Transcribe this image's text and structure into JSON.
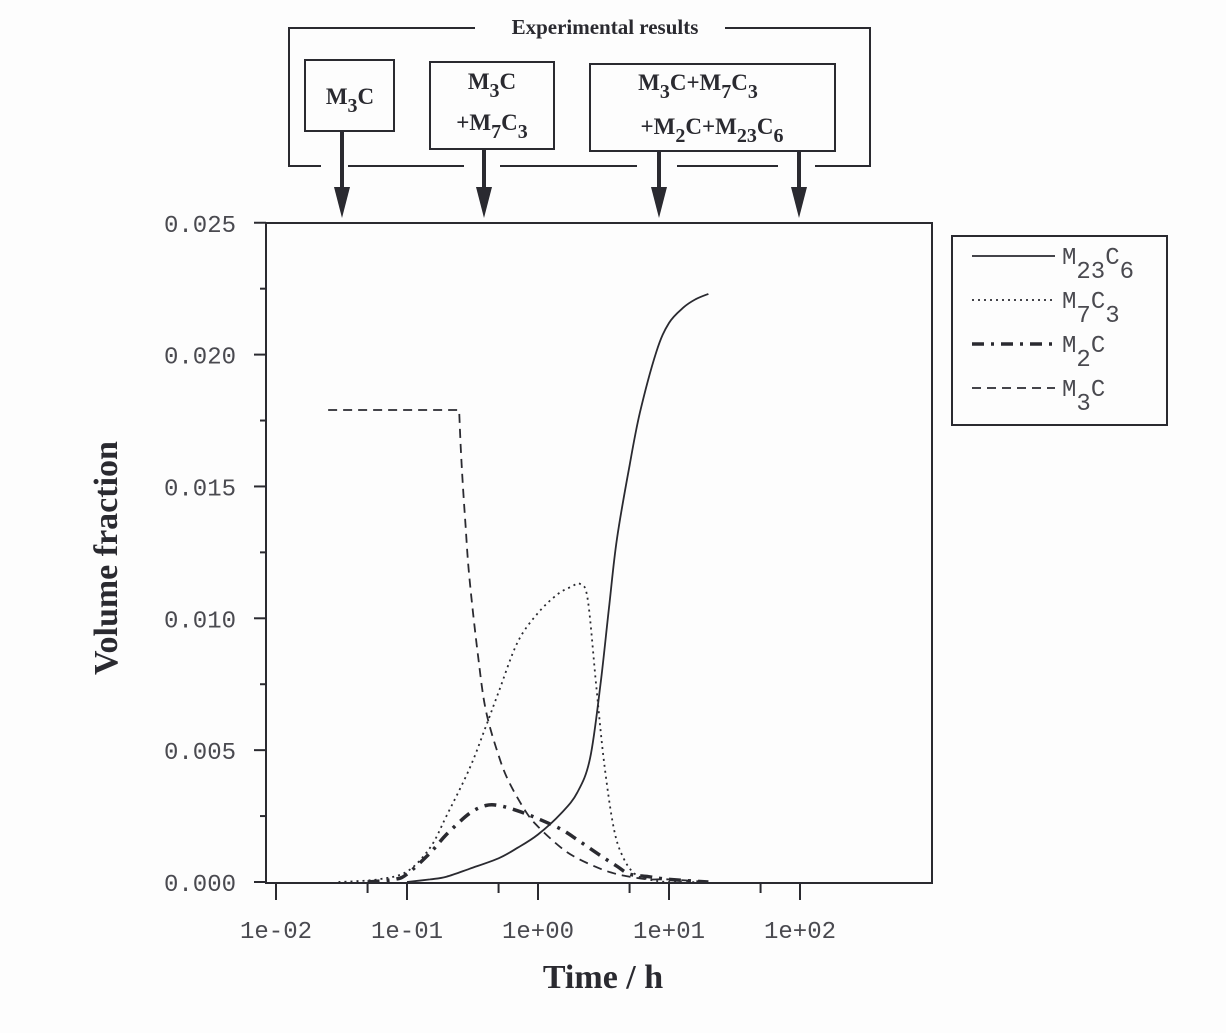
{
  "annotation": {
    "title": "Experimental results",
    "boxes": [
      {
        "lines": [
          [
            [
              "M",
              ""
            ],
            [
              "3",
              "sub"
            ],
            [
              "C",
              ""
            ]
          ]
        ]
      },
      {
        "lines": [
          [
            [
              "M",
              ""
            ],
            [
              "3",
              "sub"
            ],
            [
              "C",
              ""
            ]
          ],
          [
            [
              "+M",
              ""
            ],
            [
              "7",
              "sub"
            ],
            [
              "C",
              ""
            ],
            [
              "3",
              "sub"
            ]
          ]
        ]
      },
      {
        "lines": [
          [
            [
              "M",
              ""
            ],
            [
              "3",
              "sub"
            ],
            [
              "C+M",
              ""
            ],
            [
              "7",
              "sub"
            ],
            [
              "C",
              ""
            ],
            [
              "3",
              "sub"
            ]
          ],
          [
            [
              "+M",
              ""
            ],
            [
              "2",
              "sub"
            ],
            [
              "C+M",
              ""
            ],
            [
              "23",
              "sub"
            ],
            [
              "C",
              ""
            ],
            [
              "6",
              "sub"
            ]
          ]
        ]
      }
    ],
    "arrow_times_h": [
      0.03,
      0.25,
      7,
      100
    ]
  },
  "chart_data": {
    "type": "line",
    "title": "",
    "xlabel": "Time / h",
    "ylabel": "Volume fraction",
    "xscale": "log",
    "xlim": [
      0.0085,
      1000
    ],
    "ylim": [
      0,
      0.025
    ],
    "grid": false,
    "legend_position": "right-outside",
    "xticks": [
      "1e-02",
      "1e-01",
      "1e+00",
      "1e+01",
      "1e+02"
    ],
    "yticks": [
      "0.000",
      "0.005",
      "0.010",
      "0.015",
      "0.020",
      "0.025"
    ],
    "series": [
      {
        "name": "M23C6",
        "label_parts": [
          [
            "M",
            ""
          ],
          [
            "23",
            "sub"
          ],
          [
            "C",
            ""
          ],
          [
            "6",
            "sub"
          ]
        ],
        "style": "solid",
        "x": [
          0.1,
          0.15,
          0.2,
          0.3,
          0.5,
          0.7,
          1.0,
          1.5,
          2.0,
          2.5,
          3.0,
          3.5,
          4.0,
          5.0,
          6.0,
          8.0,
          10,
          13,
          16,
          20
        ],
        "y": [
          0.0,
          0.0001,
          0.0002,
          0.0005,
          0.0009,
          0.0013,
          0.0018,
          0.0026,
          0.0034,
          0.0047,
          0.0075,
          0.0105,
          0.013,
          0.0158,
          0.0178,
          0.0201,
          0.0212,
          0.0218,
          0.0221,
          0.0223
        ]
      },
      {
        "name": "M7C3",
        "label_parts": [
          [
            "M",
            ""
          ],
          [
            "7",
            "sub"
          ],
          [
            "C",
            ""
          ],
          [
            "3",
            "sub"
          ]
        ],
        "style": "dotted",
        "x": [
          0.03,
          0.06,
          0.1,
          0.15,
          0.2,
          0.3,
          0.4,
          0.5,
          0.7,
          1.0,
          1.4,
          1.8,
          2.1,
          2.4,
          2.8,
          3.2,
          3.8,
          4.5,
          5.5,
          7,
          10,
          20
        ],
        "y": [
          0.0,
          0.0001,
          0.0004,
          0.0013,
          0.0025,
          0.0043,
          0.0059,
          0.0072,
          0.0091,
          0.0102,
          0.0109,
          0.0112,
          0.0113,
          0.0107,
          0.0073,
          0.0045,
          0.002,
          0.0009,
          0.0003,
          0.0001,
          0.0,
          0.0
        ]
      },
      {
        "name": "M2C",
        "label_parts": [
          [
            "M",
            ""
          ],
          [
            "2",
            "sub"
          ],
          [
            "C",
            ""
          ]
        ],
        "style": "dash-dot-thick",
        "x": [
          0.05,
          0.08,
          0.1,
          0.15,
          0.2,
          0.3,
          0.4,
          0.5,
          0.7,
          1.0,
          1.5,
          2.0,
          3.0,
          4.0,
          5.0,
          7.0,
          10,
          20
        ],
        "y": [
          0.0,
          0.0001,
          0.0003,
          0.0011,
          0.0018,
          0.0026,
          0.0029,
          0.0029,
          0.0027,
          0.0024,
          0.002,
          0.0016,
          0.001,
          0.0006,
          0.0003,
          0.0002,
          0.0001,
          0.0
        ]
      },
      {
        "name": "M3C",
        "label_parts": [
          [
            "M",
            ""
          ],
          [
            "3",
            "sub"
          ],
          [
            "C",
            ""
          ]
        ],
        "style": "dashed",
        "x": [
          0.025,
          0.25,
          0.26,
          0.28,
          0.3,
          0.35,
          0.4,
          0.5,
          0.6,
          0.8,
          1.0,
          1.5,
          2.0,
          3.0,
          4.0,
          5.0,
          7.0,
          10,
          20
        ],
        "y": [
          0.0179,
          0.0179,
          0.016,
          0.0135,
          0.0115,
          0.0085,
          0.0065,
          0.0048,
          0.0038,
          0.0027,
          0.0021,
          0.0013,
          0.0009,
          0.0005,
          0.0003,
          0.0002,
          0.0001,
          0.0001,
          0.0
        ]
      }
    ]
  }
}
